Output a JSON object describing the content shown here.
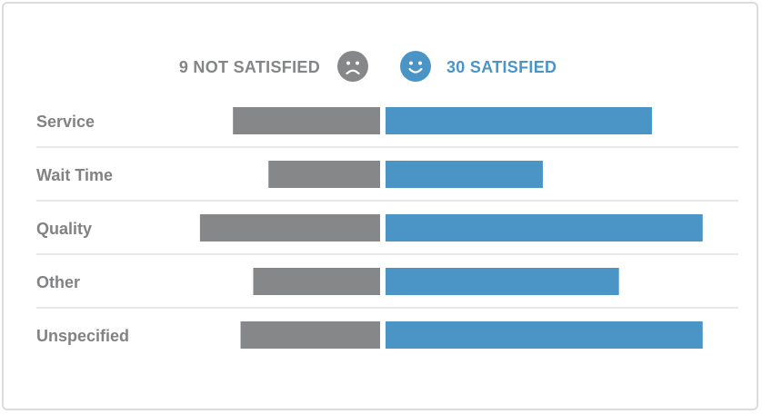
{
  "header": {
    "negative_label": "9 NOT SATISFIED",
    "positive_label": "30 SATISFIED",
    "negative_icon": "frown-face-icon",
    "positive_icon": "smile-face-icon"
  },
  "colors": {
    "negative": "#858789",
    "positive": "#4a95c6",
    "divider": "#e2e2e2",
    "label": "#808284"
  },
  "chart_data": {
    "type": "bar",
    "layout": "diverging-horizontal",
    "categories": [
      "Service",
      "Wait Time",
      "Quality",
      "Other",
      "Unspecified"
    ],
    "series": [
      {
        "name": "9 NOT SATISFIED",
        "values": [
          5.8,
          4.4,
          7.1,
          5.0,
          5.5
        ]
      },
      {
        "name": "30 SATISFIED",
        "values": [
          10.5,
          6.2,
          12.5,
          9.2,
          12.5
        ]
      }
    ],
    "grid": false,
    "legend": "top-center"
  }
}
